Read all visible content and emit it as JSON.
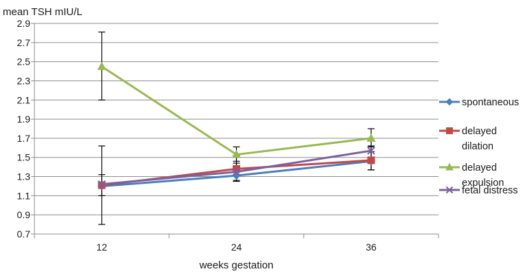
{
  "chart_data": {
    "type": "line",
    "ylabel": "mean TSH mIU/L",
    "xlabel": "weeks gestation",
    "categories": [
      "12",
      "24",
      "36"
    ],
    "ylim": [
      0.7,
      2.9
    ],
    "yticks": [
      "0.7",
      "0.9",
      "1.1",
      "1.3",
      "1.5",
      "1.7",
      "1.9",
      "2.1",
      "2.3",
      "2.5",
      "2.7",
      "2.9"
    ],
    "grid": "horizontal",
    "legend_position": "right",
    "series": [
      {
        "name": "spontaneous",
        "legend_lines": [
          "spontaneous"
        ],
        "color": "#4a7ebb",
        "marker": "diamond",
        "values": [
          1.2,
          1.31,
          1.46
        ]
      },
      {
        "name": "delayed dilation",
        "legend_lines": [
          "delayed",
          "dilation"
        ],
        "color": "#be4b48",
        "marker": "square",
        "values": [
          1.21,
          1.38,
          1.47
        ]
      },
      {
        "name": "delayed expulsion",
        "legend_lines": [
          "delayed",
          "expulsion"
        ],
        "color": "#98b954",
        "marker": "triangle",
        "values": [
          2.45,
          1.53,
          1.7
        ],
        "error_low": [
          2.1,
          1.46,
          1.61
        ],
        "error_high": [
          2.81,
          1.61,
          1.8
        ]
      },
      {
        "name": "fetal distress",
        "legend_lines": [
          "fetal distress"
        ],
        "color": "#7d60a0",
        "marker": "x",
        "values": [
          1.22,
          1.35,
          1.57
        ],
        "error_low": [
          0.8,
          1.26,
          1.37
        ],
        "error_high": [
          1.62,
          1.44,
          1.62
        ]
      }
    ],
    "extra_error_bars": [
      {
        "category_index": 0,
        "low": 1.1,
        "high": 1.32
      },
      {
        "category_index": 1,
        "low": 1.25,
        "high": 1.52
      },
      {
        "category_index": 2,
        "low": 1.37,
        "high": 1.56
      }
    ]
  }
}
